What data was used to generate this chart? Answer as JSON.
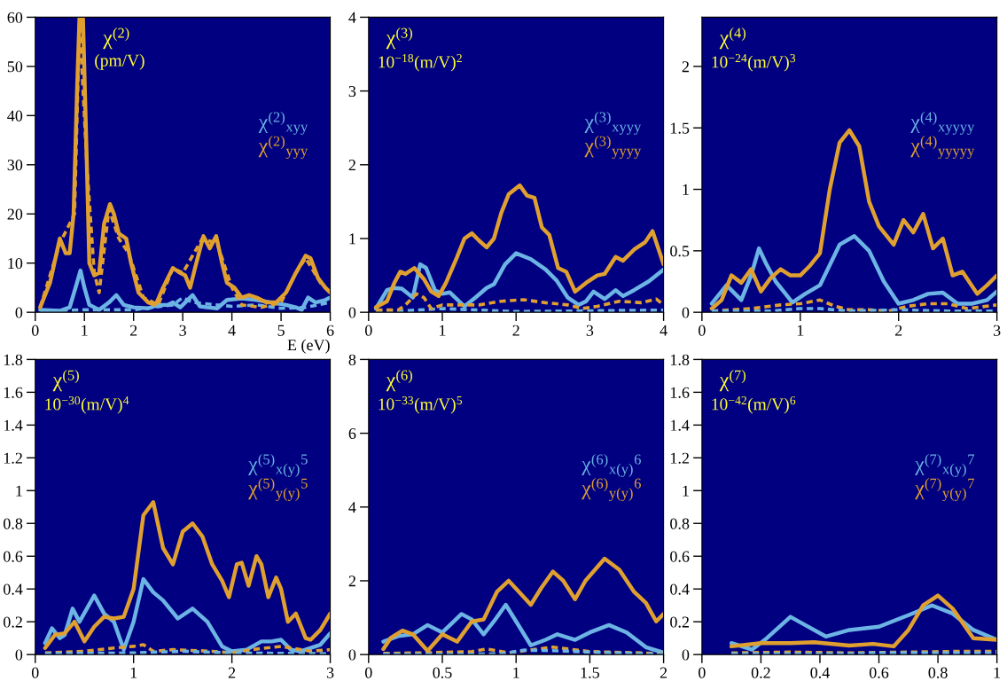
{
  "chart_data": [
    {
      "type": "line",
      "title": "χ$^{(2)}$",
      "subtitle": "(pm/V)",
      "xlabel": "E (eV)",
      "xlim": [
        0,
        6
      ],
      "ylim": [
        0,
        60
      ],
      "xticks": [
        0,
        1,
        2,
        3,
        4,
        5,
        6
      ],
      "yticks": [
        0,
        10,
        20,
        30,
        40,
        50,
        60
      ],
      "legend": "right",
      "grid": false,
      "series": [
        {
          "name": "χ$^{(2)}$$_{xyy}$",
          "color": "#6cb4e4",
          "line_style": "solid",
          "x": [
            0.1,
            0.5,
            0.7,
            0.82,
            0.92,
            1.0,
            1.1,
            1.3,
            1.5,
            1.65,
            1.8,
            2.0,
            2.3,
            2.5,
            2.7,
            2.8,
            2.95,
            3.05,
            3.2,
            3.35,
            3.5,
            3.7,
            3.9,
            4.2,
            4.5,
            4.8,
            5.1,
            5.3,
            5.42,
            5.55,
            5.7,
            5.9,
            6.0
          ],
          "values": [
            0.5,
            0.3,
            1,
            5,
            8.5,
            5,
            1.5,
            0.5,
            2,
            3.5,
            1.5,
            1,
            0.8,
            1.5,
            1.5,
            2,
            1,
            2,
            3.5,
            1.2,
            1,
            0.8,
            2.5,
            2.8,
            2.5,
            2,
            1.5,
            1,
            0.5,
            3,
            2,
            2.5,
            3
          ]
        },
        {
          "name": "χ$^{(2)}$$_{yyy}$",
          "color": "#e0a030",
          "line_style": "solid",
          "x": [
            0.1,
            0.3,
            0.5,
            0.62,
            0.7,
            0.78,
            0.85,
            0.9,
            0.97,
            1.05,
            1.1,
            1.2,
            1.3,
            1.4,
            1.52,
            1.6,
            1.7,
            1.85,
            1.95,
            2.1,
            2.3,
            2.45,
            2.6,
            2.7,
            2.8,
            2.95,
            3.05,
            3.15,
            3.25,
            3.42,
            3.55,
            3.68,
            3.8,
            3.9,
            4.05,
            4.2,
            4.35,
            4.5,
            4.7,
            4.9,
            5.1,
            5.3,
            5.5,
            5.6,
            5.75,
            5.9,
            6.0
          ],
          "values": [
            1,
            6,
            15,
            12,
            12,
            20,
            45,
            60,
            60,
            30,
            10,
            7.5,
            8,
            18,
            22,
            20,
            16,
            15,
            10,
            4,
            2,
            1.5,
            5,
            7,
            9,
            8,
            7.5,
            5,
            9,
            15.5,
            13,
            15.5,
            10,
            6,
            5,
            3,
            3.5,
            3,
            2,
            2,
            4,
            8,
            11.5,
            11,
            7,
            5,
            4
          ]
        },
        {
          "color": "#6cb4e4",
          "line_style": "dashed",
          "x": [
            0.1,
            1.0,
            2.0,
            2.8,
            3.0,
            3.2,
            4.0,
            4.5,
            5.0,
            5.5,
            6.0
          ],
          "values": [
            0.2,
            0.5,
            0.5,
            1.5,
            3,
            2,
            1.2,
            1.5,
            0.8,
            1,
            2
          ]
        },
        {
          "color": "#e0a030",
          "line_style": "dashed",
          "x": [
            0.1,
            0.5,
            0.8,
            0.9,
            1.05,
            1.2,
            1.3,
            1.5,
            1.7,
            1.9,
            2.2,
            2.5,
            2.8,
            3.0,
            3.4,
            3.7,
            4.0,
            4.2,
            4.6,
            5.0,
            5.3,
            5.5,
            5.8,
            6.0
          ],
          "values": [
            1,
            14,
            20,
            59,
            30,
            8,
            4,
            21,
            15,
            12,
            3,
            1.5,
            9,
            8,
            15,
            14,
            5,
            1.5,
            1,
            2,
            8,
            11,
            6,
            4
          ]
        }
      ]
    },
    {
      "type": "line",
      "title": "χ$^{(3)}$",
      "subtitle": "10$^{−18}$(m/V)$^{2}$",
      "xlim": [
        0,
        4
      ],
      "ylim": [
        0,
        4
      ],
      "xticks": [
        0,
        1,
        2,
        3,
        4
      ],
      "yticks": [
        0,
        1,
        2,
        3,
        4
      ],
      "legend": "right",
      "grid": false,
      "series": [
        {
          "name": "χ$^{(3)}$$_{xyyy}$",
          "color": "#6cb4e4",
          "line_style": "solid",
          "x": [
            0.1,
            0.25,
            0.35,
            0.45,
            0.6,
            0.7,
            0.78,
            0.9,
            1.0,
            1.1,
            1.3,
            1.45,
            1.6,
            1.7,
            1.85,
            2.0,
            2.2,
            2.4,
            2.55,
            2.7,
            2.85,
            2.95,
            3.05,
            3.2,
            3.35,
            3.45,
            3.6,
            3.8,
            4.0
          ],
          "values": [
            0.05,
            0.3,
            0.33,
            0.32,
            0.2,
            0.65,
            0.6,
            0.3,
            0.25,
            0.27,
            0.08,
            0.2,
            0.33,
            0.38,
            0.65,
            0.8,
            0.72,
            0.58,
            0.43,
            0.2,
            0.1,
            0.15,
            0.28,
            0.18,
            0.3,
            0.22,
            0.3,
            0.42,
            0.58
          ]
        },
        {
          "name": "χ$^{(3)}$$_{yyyy}$",
          "color": "#e0a030",
          "line_style": "solid",
          "x": [
            0.1,
            0.25,
            0.35,
            0.43,
            0.5,
            0.62,
            0.75,
            0.85,
            0.95,
            1.05,
            1.2,
            1.3,
            1.4,
            1.5,
            1.6,
            1.7,
            1.8,
            1.9,
            2.05,
            2.15,
            2.25,
            2.35,
            2.45,
            2.57,
            2.68,
            2.8,
            2.95,
            3.1,
            3.2,
            3.35,
            3.45,
            3.6,
            3.75,
            3.85,
            3.95,
            4.0
          ],
          "values": [
            0.07,
            0.15,
            0.4,
            0.55,
            0.52,
            0.6,
            0.45,
            0.28,
            0.22,
            0.4,
            0.75,
            1.0,
            1.07,
            0.97,
            0.88,
            1.0,
            1.35,
            1.6,
            1.72,
            1.58,
            1.55,
            1.15,
            1.05,
            0.6,
            0.55,
            0.28,
            0.4,
            0.5,
            0.52,
            0.75,
            0.7,
            0.85,
            0.95,
            1.1,
            0.8,
            0.65
          ]
        },
        {
          "color": "#6cb4e4",
          "line_style": "dashed",
          "x": [
            0.1,
            0.5,
            1.0,
            1.5,
            2.0,
            3.0,
            4.0
          ],
          "values": [
            0.02,
            0.02,
            0.05,
            0.03,
            0.01,
            0.02,
            0.03
          ]
        },
        {
          "color": "#e0a030",
          "line_style": "dashed",
          "x": [
            0.1,
            0.4,
            0.5,
            0.65,
            0.75,
            0.85,
            1.0,
            1.25,
            1.5,
            1.8,
            2.1,
            2.4,
            2.7,
            2.9,
            3.1,
            3.4,
            3.7,
            3.9,
            4.0
          ],
          "values": [
            0.03,
            0.03,
            0.1,
            0.25,
            0.2,
            0.05,
            0.1,
            0.1,
            0.1,
            0.15,
            0.17,
            0.13,
            0.1,
            0.05,
            0.08,
            0.15,
            0.13,
            0.18,
            0.1
          ]
        }
      ]
    },
    {
      "type": "line",
      "title": "χ$^{(4)}$",
      "subtitle": "10$^{−24}$(m/V)$^{3}$",
      "xlim": [
        0,
        3
      ],
      "ylim": [
        0,
        2.4
      ],
      "xticks": [
        0,
        1,
        2,
        3
      ],
      "yticks": [
        0,
        0.5,
        1,
        1.5,
        2
      ],
      "legend": "right",
      "grid": false,
      "series": [
        {
          "name": "χ$^{(4)}$$_{xyyyy}$",
          "color": "#6cb4e4",
          "line_style": "solid",
          "x": [
            0.1,
            0.25,
            0.4,
            0.5,
            0.58,
            0.65,
            0.75,
            0.85,
            0.92,
            1.05,
            1.2,
            1.4,
            1.55,
            1.7,
            1.85,
            2.0,
            2.15,
            2.3,
            2.45,
            2.6,
            2.75,
            2.9,
            3.0
          ],
          "values": [
            0.07,
            0.22,
            0.1,
            0.3,
            0.52,
            0.4,
            0.25,
            0.15,
            0.08,
            0.15,
            0.22,
            0.55,
            0.62,
            0.5,
            0.25,
            0.07,
            0.1,
            0.15,
            0.16,
            0.07,
            0.07,
            0.1,
            0.17
          ]
        },
        {
          "name": "χ$^{(4)}$$_{yyyyy}$",
          "color": "#e0a030",
          "line_style": "solid",
          "x": [
            0.1,
            0.2,
            0.3,
            0.4,
            0.5,
            0.6,
            0.7,
            0.8,
            0.9,
            1.0,
            1.1,
            1.2,
            1.3,
            1.4,
            1.5,
            1.6,
            1.7,
            1.8,
            1.95,
            2.05,
            2.15,
            2.25,
            2.35,
            2.45,
            2.55,
            2.65,
            2.8,
            2.9,
            3.0
          ],
          "values": [
            0.03,
            0.1,
            0.3,
            0.24,
            0.35,
            0.17,
            0.28,
            0.35,
            0.3,
            0.3,
            0.38,
            0.48,
            1.0,
            1.38,
            1.48,
            1.35,
            0.9,
            0.7,
            0.55,
            0.75,
            0.65,
            0.8,
            0.52,
            0.6,
            0.3,
            0.33,
            0.15,
            0.22,
            0.3
          ]
        },
        {
          "color": "#e0a030",
          "line_style": "dashed",
          "x": [
            0.1,
            0.5,
            0.8,
            1.0,
            1.2,
            1.35,
            1.5,
            1.7,
            1.9,
            2.1,
            2.3,
            2.5,
            2.7,
            3.0
          ],
          "values": [
            0.01,
            0.03,
            0.06,
            0.07,
            0.1,
            0.05,
            0.02,
            0.02,
            0.01,
            0.05,
            0.07,
            0.07,
            0.03,
            0.06
          ]
        },
        {
          "color": "#6cb4e4",
          "line_style": "dashed",
          "x": [
            0.1,
            0.7,
            1.0,
            1.2,
            1.5,
            2.0,
            2.5,
            3.0
          ],
          "values": [
            0.01,
            0.01,
            0.03,
            0.03,
            0.01,
            0.02,
            0.01,
            0.01
          ]
        }
      ]
    },
    {
      "type": "line",
      "title": "χ$^{(5)}$",
      "subtitle": "10$^{−30}$(m/V)$^{4}$",
      "xlim": [
        0,
        3
      ],
      "ylim": [
        0,
        1.8
      ],
      "xticks": [
        0,
        1,
        2,
        3
      ],
      "yticks": [
        0,
        0.2,
        0.4,
        0.6,
        0.8,
        1,
        1.2,
        1.4,
        1.6,
        1.8
      ],
      "legend": "right",
      "grid": false,
      "series": [
        {
          "name": "χ$^{(5)}$$_{x(y)}$$^{5}$",
          "color": "#6cb4e4",
          "line_style": "solid",
          "x": [
            0.1,
            0.17,
            0.25,
            0.3,
            0.38,
            0.45,
            0.6,
            0.7,
            0.8,
            0.9,
            1.0,
            1.1,
            1.2,
            1.3,
            1.45,
            1.6,
            1.75,
            1.9,
            2.0,
            2.15,
            2.3,
            2.4,
            2.5,
            2.6,
            2.7,
            2.9,
            3.0
          ],
          "values": [
            0.07,
            0.16,
            0.1,
            0.12,
            0.28,
            0.2,
            0.36,
            0.25,
            0.2,
            0.03,
            0.2,
            0.46,
            0.38,
            0.33,
            0.22,
            0.28,
            0.2,
            0.05,
            0.02,
            0.03,
            0.08,
            0.08,
            0.09,
            0.03,
            0.02,
            0.06,
            0.13
          ]
        },
        {
          "name": "χ$^{(5)}$$_{y(y)}$$^{5}$",
          "color": "#e0a030",
          "line_style": "solid",
          "x": [
            0.1,
            0.2,
            0.3,
            0.4,
            0.5,
            0.6,
            0.7,
            0.8,
            0.9,
            1.0,
            1.1,
            1.2,
            1.3,
            1.4,
            1.5,
            1.6,
            1.7,
            1.8,
            1.9,
            1.97,
            2.05,
            2.1,
            2.17,
            2.25,
            2.3,
            2.37,
            2.45,
            2.5,
            2.57,
            2.65,
            2.75,
            2.8,
            2.9,
            3.0
          ],
          "values": [
            0.04,
            0.12,
            0.13,
            0.2,
            0.08,
            0.17,
            0.23,
            0.22,
            0.23,
            0.4,
            0.85,
            0.93,
            0.65,
            0.55,
            0.75,
            0.8,
            0.72,
            0.55,
            0.45,
            0.35,
            0.55,
            0.56,
            0.42,
            0.6,
            0.55,
            0.35,
            0.47,
            0.4,
            0.2,
            0.25,
            0.1,
            0.09,
            0.15,
            0.25
          ]
        },
        {
          "color": "#e0a030",
          "line_style": "dashed",
          "x": [
            0.1,
            0.5,
            0.8,
            1.0,
            1.1,
            1.2,
            1.4,
            1.8,
            2.0,
            2.2,
            2.5,
            2.8,
            3.0
          ],
          "values": [
            0.01,
            0.02,
            0.04,
            0.05,
            0.06,
            0.02,
            0.03,
            0.02,
            0.01,
            0.03,
            0.05,
            0.02,
            0.03
          ]
        },
        {
          "color": "#6cb4e4",
          "line_style": "dashed",
          "x": [
            0.1,
            1.0,
            1.5,
            2.0,
            3.0
          ],
          "values": [
            0.005,
            0.01,
            0.02,
            0.01,
            0.005
          ]
        }
      ]
    },
    {
      "type": "line",
      "title": "χ$^{(6)}$",
      "subtitle": "10$^{−33}$(m/V)$^{5}$",
      "xlim": [
        0,
        2
      ],
      "ylim": [
        0,
        8
      ],
      "xticks": [
        0,
        0.5,
        1,
        1.5,
        2
      ],
      "yticks": [
        0,
        2,
        4,
        6,
        8
      ],
      "legend": "right",
      "grid": false,
      "series": [
        {
          "name": "χ$^{(6)}$$_{x(y)}$$^{6}$",
          "color": "#6cb4e4",
          "line_style": "solid",
          "x": [
            0.1,
            0.2,
            0.3,
            0.4,
            0.5,
            0.63,
            0.7,
            0.78,
            0.85,
            0.93,
            1.0,
            1.1,
            1.2,
            1.28,
            1.4,
            1.5,
            1.63,
            1.75,
            1.88,
            2.0
          ],
          "values": [
            0.35,
            0.5,
            0.55,
            0.8,
            0.6,
            1.1,
            0.95,
            0.55,
            0.9,
            1.35,
            0.9,
            0.25,
            0.4,
            0.55,
            0.4,
            0.6,
            0.8,
            0.6,
            0.2,
            0.05
          ]
        },
        {
          "name": "χ$^{(6)}$$_{y(y)}$$^{6}$",
          "color": "#e0a030",
          "line_style": "solid",
          "x": [
            0.1,
            0.15,
            0.23,
            0.3,
            0.4,
            0.5,
            0.6,
            0.7,
            0.78,
            0.87,
            0.95,
            1.02,
            1.1,
            1.17,
            1.25,
            1.32,
            1.4,
            1.47,
            1.6,
            1.7,
            1.8,
            1.88,
            1.95,
            2.0
          ],
          "values": [
            0.15,
            0.45,
            0.65,
            0.55,
            0.1,
            0.55,
            0.35,
            0.9,
            0.95,
            1.7,
            2.0,
            1.7,
            1.35,
            1.8,
            2.25,
            2.0,
            1.5,
            2.0,
            2.6,
            2.3,
            1.7,
            1.4,
            0.9,
            1.1
          ]
        },
        {
          "color": "#e0a030",
          "line_style": "dashed",
          "x": [
            0.1,
            0.4,
            0.7,
            0.8,
            0.95,
            1.05,
            1.25,
            1.5,
            1.8,
            2.0
          ],
          "values": [
            0.03,
            0.05,
            0.08,
            0.15,
            0.05,
            0.1,
            0.2,
            0.08,
            0.05,
            0.02
          ]
        },
        {
          "color": "#6cb4e4",
          "line_style": "dashed",
          "x": [
            0.1,
            0.7,
            0.9,
            1.05,
            1.3,
            1.6,
            2.0
          ],
          "values": [
            0.01,
            0.01,
            0.02,
            0.12,
            0.1,
            0.05,
            0.01
          ]
        }
      ]
    },
    {
      "type": "line",
      "title": "χ$^{(7)}$",
      "subtitle": "10$^{−42}$(m/V)$^{6}$",
      "xlim": [
        0,
        1
      ],
      "ylim": [
        0,
        1.8
      ],
      "xticks": [
        0,
        0.2,
        0.4,
        0.6,
        0.8,
        1
      ],
      "yticks": [
        0,
        0.2,
        0.4,
        0.6,
        0.8,
        1,
        1.2,
        1.4,
        1.6,
        1.8
      ],
      "legend": "right",
      "grid": false,
      "series": [
        {
          "name": "χ$^{(7)}$$_{x(y)}$$^{7}$",
          "color": "#6cb4e4",
          "line_style": "solid",
          "x": [
            0.1,
            0.17,
            0.22,
            0.3,
            0.35,
            0.42,
            0.5,
            0.6,
            0.7,
            0.78,
            0.85,
            0.92,
            1.0
          ],
          "values": [
            0.07,
            0.03,
            0.1,
            0.23,
            0.18,
            0.11,
            0.15,
            0.17,
            0.24,
            0.3,
            0.25,
            0.15,
            0.09
          ]
        },
        {
          "name": "χ$^{(7)}$$_{y(y)}$$^{7}$",
          "color": "#e0a030",
          "line_style": "solid",
          "x": [
            0.1,
            0.2,
            0.3,
            0.38,
            0.5,
            0.58,
            0.65,
            0.7,
            0.75,
            0.8,
            0.85,
            0.92,
            1.0
          ],
          "values": [
            0.05,
            0.07,
            0.07,
            0.075,
            0.055,
            0.065,
            0.05,
            0.15,
            0.3,
            0.36,
            0.28,
            0.1,
            0.09
          ]
        },
        {
          "color": "#e0a030",
          "line_style": "dashed",
          "x": [
            0.1,
            0.3,
            0.5,
            0.7,
            0.9,
            1.0
          ],
          "values": [
            0.01,
            0.015,
            0.01,
            0.015,
            0.02,
            0.02
          ]
        },
        {
          "color": "#6cb4e4",
          "line_style": "dashed",
          "x": [
            0.1,
            0.5,
            0.6,
            1.0
          ],
          "values": [
            0.005,
            0.005,
            0.01,
            0.01
          ]
        }
      ]
    }
  ]
}
